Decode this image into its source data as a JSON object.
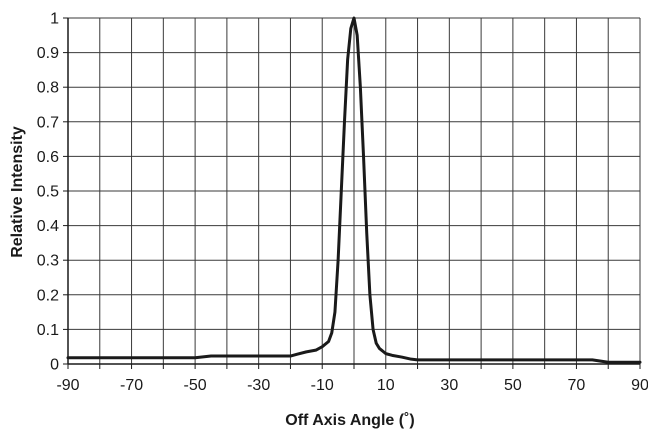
{
  "chart_data": {
    "type": "line",
    "title": "",
    "xlabel": "Off Axis Angle (˚)",
    "ylabel": "Relative Intensity",
    "xlim": [
      -90,
      90
    ],
    "ylim": [
      0,
      1
    ],
    "x_ticks": [
      -90,
      -70,
      -50,
      -30,
      -10,
      10,
      30,
      50,
      70,
      90
    ],
    "x_grid": [
      -90,
      -80,
      -70,
      -60,
      -50,
      -40,
      -30,
      -20,
      -10,
      0,
      10,
      20,
      30,
      40,
      50,
      60,
      70,
      80,
      90
    ],
    "y_ticks": [
      0,
      0.1,
      0.2,
      0.3,
      0.4,
      0.5,
      0.6,
      0.7,
      0.8,
      0.9,
      1
    ],
    "y_tick_labels": [
      "0",
      "0.1",
      "0.2",
      "0.3",
      "0.4",
      "0.5",
      "0.6",
      "0.7",
      "0.8",
      "0.9",
      "1"
    ],
    "grid": true,
    "legend": "none",
    "line_color": "#1a1a1a",
    "series": [
      {
        "x": [
          -90,
          -70,
          -50,
          -45,
          -30,
          -20,
          -18,
          -15,
          -12,
          -10,
          -8,
          -7,
          -6,
          -5,
          -4,
          -3,
          -2,
          -1,
          0,
          1,
          2,
          3,
          4,
          5,
          6,
          7,
          8,
          10,
          12,
          15,
          18,
          20,
          30,
          50,
          70,
          75,
          80,
          90
        ],
        "y": [
          0.018,
          0.018,
          0.018,
          0.023,
          0.023,
          0.023,
          0.028,
          0.035,
          0.04,
          0.05,
          0.065,
          0.09,
          0.15,
          0.3,
          0.5,
          0.7,
          0.88,
          0.97,
          1.0,
          0.95,
          0.8,
          0.6,
          0.38,
          0.2,
          0.1,
          0.06,
          0.045,
          0.03,
          0.025,
          0.02,
          0.014,
          0.012,
          0.012,
          0.012,
          0.012,
          0.012,
          0.005,
          0.005
        ]
      }
    ]
  }
}
